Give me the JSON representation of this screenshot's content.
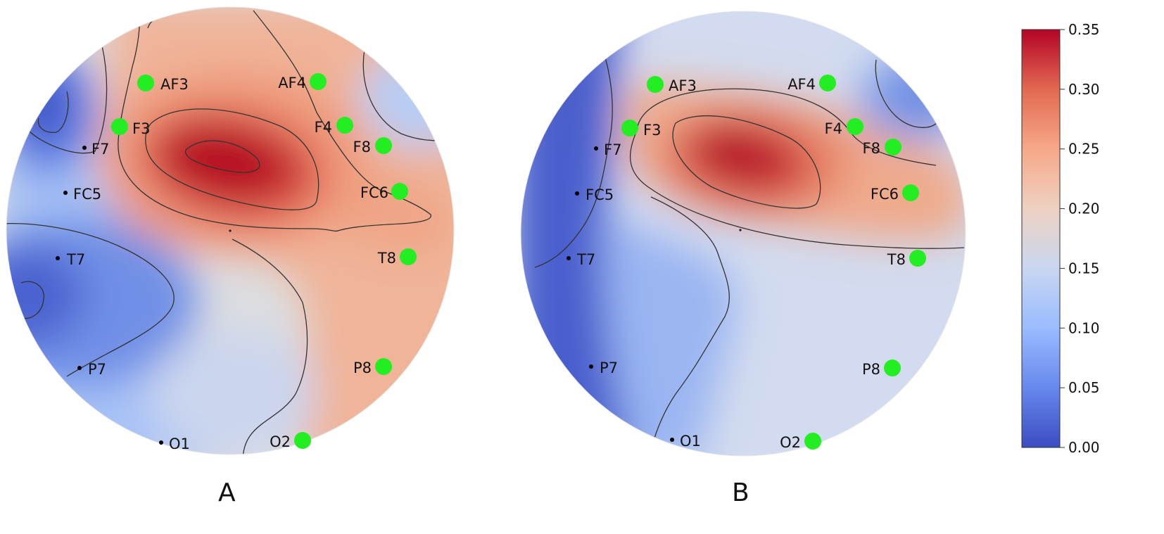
{
  "chart_data": [
    {
      "type": "heatmap",
      "panel": "A",
      "electrodes": [
        {
          "name": "AF3",
          "marker": "significant"
        },
        {
          "name": "AF4",
          "marker": "significant"
        },
        {
          "name": "F7",
          "marker": "normal"
        },
        {
          "name": "F3",
          "marker": "significant"
        },
        {
          "name": "F4",
          "marker": "significant"
        },
        {
          "name": "F8",
          "marker": "significant"
        },
        {
          "name": "FC5",
          "marker": "normal"
        },
        {
          "name": "FC6",
          "marker": "significant"
        },
        {
          "name": "T7",
          "marker": "normal"
        },
        {
          "name": "T8",
          "marker": "significant"
        },
        {
          "name": "P7",
          "marker": "normal"
        },
        {
          "name": "P8",
          "marker": "significant"
        },
        {
          "name": "O1",
          "marker": "normal"
        },
        {
          "name": "O2",
          "marker": "significant"
        }
      ],
      "field": {
        "base_value": 0.16,
        "peak": {
          "region": "between F3 and F4",
          "value": 0.35
        },
        "minimum": {
          "region": "left frontal / left temporal",
          "value": 0.03
        }
      }
    },
    {
      "type": "heatmap",
      "panel": "B",
      "electrodes": [
        {
          "name": "AF3",
          "marker": "significant"
        },
        {
          "name": "AF4",
          "marker": "significant"
        },
        {
          "name": "F7",
          "marker": "normal"
        },
        {
          "name": "F3",
          "marker": "significant"
        },
        {
          "name": "F4",
          "marker": "significant"
        },
        {
          "name": "F8",
          "marker": "significant"
        },
        {
          "name": "FC5",
          "marker": "normal"
        },
        {
          "name": "FC6",
          "marker": "significant"
        },
        {
          "name": "T7",
          "marker": "normal"
        },
        {
          "name": "T8",
          "marker": "significant"
        },
        {
          "name": "P7",
          "marker": "normal"
        },
        {
          "name": "P8",
          "marker": "significant"
        },
        {
          "name": "O1",
          "marker": "normal"
        },
        {
          "name": "O2",
          "marker": "significant"
        }
      ],
      "field": {
        "base_value": 0.15,
        "peak": {
          "region": "between F3 and F4",
          "value": 0.33
        },
        "minimum": {
          "region": "left hemisphere",
          "value": 0.02
        }
      }
    }
  ],
  "colorbar": {
    "min": 0.0,
    "max": 0.35,
    "ticks": [
      "0.00",
      "0.05",
      "0.10",
      "0.15",
      "0.20",
      "0.25",
      "0.30",
      "0.35"
    ],
    "colormap": "coolwarm",
    "stops": [
      "#3b4cc0",
      "#6788ee",
      "#9abbff",
      "#c9d7f0",
      "#edd1c2",
      "#f7a889",
      "#e26952",
      "#b40426"
    ]
  },
  "colors": {
    "significant_marker": "#22ee22",
    "normal_marker": "#000000",
    "contour": "#333333"
  },
  "panel_labels": {
    "a": "A",
    "b": "B"
  }
}
